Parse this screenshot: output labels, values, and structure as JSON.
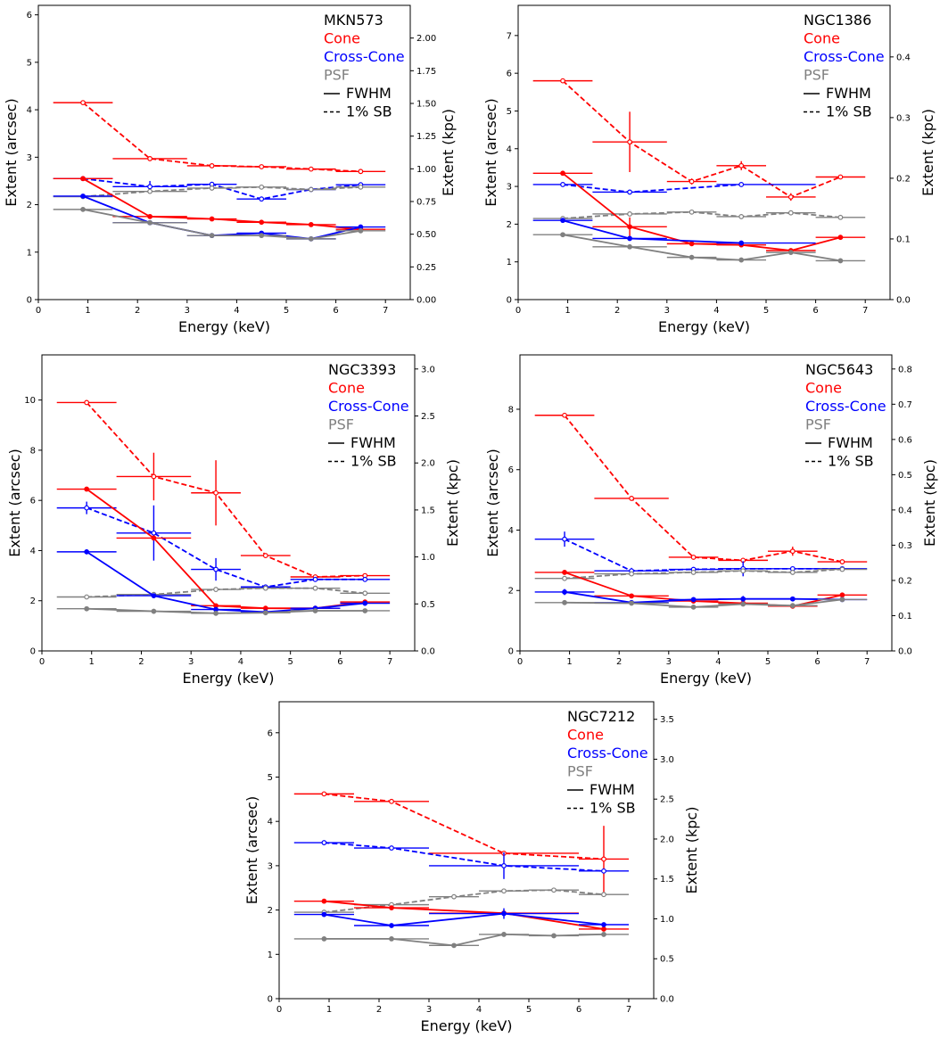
{
  "figure": {
    "xlabel": "Energy (keV)",
    "ylabel_left": "Extent (arcsec)",
    "ylabel_right": "Extent (kpc)",
    "colors": {
      "cone": "#ff0000",
      "cross_cone": "#0000ff",
      "psf": "#808080"
    },
    "legend": {
      "cone": "Cone",
      "cross_cone": "Cross-Cone",
      "psf": "PSF",
      "fwhm": "FWHM",
      "sb": "1% SB"
    }
  },
  "chart_data": [
    {
      "type": "line",
      "title": "MKN573",
      "xlim": [
        0,
        7.5
      ],
      "x_ticks": [
        0,
        1,
        2,
        3,
        4,
        5,
        6,
        7
      ],
      "ylim": [
        0,
        6.2
      ],
      "y_ticks": [
        0,
        1,
        2,
        3,
        4,
        5,
        6
      ],
      "y2lim": [
        0,
        2.25
      ],
      "y2_ticks": [
        "0.00",
        "0.25",
        "0.50",
        "0.75",
        "1.00",
        "1.25",
        "1.50",
        "1.75",
        "2.00"
      ],
      "x": [
        0.9,
        2.25,
        3.5,
        4.5,
        5.5,
        6.5
      ],
      "xerr_low": [
        0.6,
        0.75,
        0.5,
        0.5,
        0.5,
        0.5
      ],
      "xerr_high": [
        0.6,
        0.75,
        0.5,
        0.5,
        0.5,
        0.5
      ],
      "series": [
        {
          "name": "Cone 1% SB",
          "group": "cone",
          "style": "dashed",
          "values": [
            4.15,
            2.97,
            2.82,
            2.8,
            2.75,
            2.7
          ],
          "yerr": [
            0,
            0,
            0,
            0,
            0,
            0
          ]
        },
        {
          "name": "Cross-Cone 1% SB",
          "group": "cross_cone",
          "style": "dashed",
          "values": [
            2.55,
            2.38,
            2.43,
            2.12,
            2.32,
            2.42
          ],
          "yerr": [
            0,
            0.12,
            0,
            0.05,
            0,
            0
          ]
        },
        {
          "name": "PSF 1% SB",
          "group": "psf",
          "style": "dashed",
          "values": [
            2.17,
            2.28,
            2.35,
            2.37,
            2.32,
            2.37
          ],
          "yerr": [
            0,
            0,
            0,
            0,
            0,
            0
          ]
        },
        {
          "name": "Cone FWHM",
          "group": "cone",
          "style": "solid",
          "values": [
            2.55,
            1.75,
            1.7,
            1.63,
            1.58,
            1.48
          ],
          "yerr": [
            0,
            0,
            0,
            0,
            0,
            0
          ]
        },
        {
          "name": "Cross-Cone FWHM",
          "group": "cross_cone",
          "style": "solid",
          "values": [
            2.18,
            1.62,
            1.35,
            1.4,
            1.28,
            1.53
          ],
          "yerr": [
            0,
            0,
            0,
            0,
            0,
            0
          ]
        },
        {
          "name": "PSF FWHM",
          "group": "psf",
          "style": "solid",
          "values": [
            1.9,
            1.62,
            1.35,
            1.35,
            1.28,
            1.45
          ],
          "yerr": [
            0,
            0,
            0,
            0,
            0,
            0
          ]
        }
      ]
    },
    {
      "type": "line",
      "title": "NGC1386",
      "xlim": [
        0,
        7.5
      ],
      "x_ticks": [
        0,
        1,
        2,
        3,
        4,
        5,
        6,
        7
      ],
      "ylim": [
        0,
        7.8
      ],
      "y_ticks": [
        0,
        1,
        2,
        3,
        4,
        5,
        6,
        7
      ],
      "y2lim": [
        0,
        0.485
      ],
      "y2_ticks": [
        "0.0",
        "0.1",
        "0.2",
        "0.3",
        "0.4"
      ],
      "x": [
        0.9,
        2.25,
        3.5,
        4.5,
        5.5,
        6.5
      ],
      "xerr_low": [
        0.6,
        0.75,
        0.5,
        0.5,
        0.5,
        0.5
      ],
      "xerr_high": [
        0.6,
        0.75,
        0.5,
        0.5,
        0.5,
        0.5
      ],
      "series": [
        {
          "name": "Cone 1% SB",
          "group": "cone",
          "style": "dashed",
          "values": [
            5.8,
            4.18,
            3.13,
            3.55,
            2.72,
            3.25
          ],
          "yerr": [
            0,
            0.8,
            0.08,
            0.12,
            0.1,
            0
          ]
        },
        {
          "name": "Cross-Cone 1% SB",
          "group": "cross_cone",
          "style": "dashed",
          "values": [
            3.05,
            2.85,
            null,
            3.05,
            null,
            null
          ],
          "yerr": [
            0,
            0,
            0,
            0,
            0,
            0
          ],
          "xerr_low": [
            0.6,
            0.75,
            0,
            0.5,
            0,
            0
          ],
          "xerr_high": [
            0.6,
            0.75,
            0,
            1.5,
            0,
            0
          ]
        },
        {
          "name": "PSF 1% SB",
          "group": "psf",
          "style": "dashed",
          "values": [
            2.15,
            2.27,
            2.32,
            2.2,
            2.3,
            2.18
          ],
          "yerr": [
            0,
            0,
            0,
            0,
            0,
            0
          ]
        },
        {
          "name": "Cone FWHM",
          "group": "cone",
          "style": "solid",
          "values": [
            3.35,
            1.93,
            1.48,
            1.45,
            1.3,
            1.65
          ],
          "yerr": [
            0,
            0.25,
            0,
            0,
            0,
            0
          ]
        },
        {
          "name": "Cross-Cone FWHM",
          "group": "cross_cone",
          "style": "solid",
          "values": [
            2.1,
            1.62,
            null,
            1.5,
            null,
            null
          ],
          "yerr": [
            0,
            0,
            0,
            0,
            0,
            0
          ],
          "xerr_low": [
            0.6,
            0.75,
            0,
            0.5,
            0,
            0
          ],
          "xerr_high": [
            0.6,
            0.75,
            0,
            1.5,
            0,
            0
          ]
        },
        {
          "name": "PSF FWHM",
          "group": "psf",
          "style": "solid",
          "values": [
            1.72,
            1.4,
            1.12,
            1.05,
            1.25,
            1.03
          ],
          "yerr": [
            0,
            0,
            0,
            0,
            0,
            0
          ]
        }
      ]
    },
    {
      "type": "line",
      "title": "NGC3393",
      "xlim": [
        0,
        7.5
      ],
      "x_ticks": [
        0,
        1,
        2,
        3,
        4,
        5,
        6,
        7
      ],
      "ylim": [
        0,
        11.8
      ],
      "y_ticks": [
        0,
        2,
        4,
        6,
        8,
        10
      ],
      "y2lim": [
        0,
        3.15
      ],
      "y2_ticks": [
        "0.0",
        "0.5",
        "1.0",
        "1.5",
        "2.0",
        "2.5",
        "3.0"
      ],
      "x": [
        0.9,
        2.25,
        3.5,
        4.5,
        5.5,
        6.5
      ],
      "xerr_low": [
        0.6,
        0.75,
        0.5,
        0.5,
        0.5,
        0.5
      ],
      "xerr_high": [
        0.6,
        0.75,
        0.5,
        0.5,
        0.5,
        0.5
      ],
      "series": [
        {
          "name": "Cone 1% SB",
          "group": "cone",
          "style": "dashed",
          "values": [
            9.9,
            6.95,
            6.3,
            3.8,
            2.95,
            3.0
          ],
          "yerr": [
            0,
            0.95,
            1.3,
            0,
            0,
            0
          ]
        },
        {
          "name": "Cross-Cone 1% SB",
          "group": "cross_cone",
          "style": "dashed",
          "values": [
            5.7,
            4.7,
            3.25,
            2.55,
            2.85,
            2.85
          ],
          "yerr": [
            0.25,
            1.1,
            0.45,
            0,
            0,
            0
          ]
        },
        {
          "name": "PSF 1% SB",
          "group": "psf",
          "style": "dashed",
          "values": [
            2.15,
            2.25,
            2.45,
            2.5,
            2.5,
            2.3
          ],
          "yerr": [
            0,
            0,
            0,
            0,
            0,
            0
          ]
        },
        {
          "name": "Cone FWHM",
          "group": "cone",
          "style": "solid",
          "values": [
            6.45,
            4.5,
            1.8,
            1.7,
            1.7,
            1.95
          ],
          "yerr": [
            0,
            0,
            0,
            0,
            0,
            0
          ]
        },
        {
          "name": "Cross-Cone FWHM",
          "group": "cross_cone",
          "style": "solid",
          "values": [
            3.95,
            2.2,
            1.65,
            1.55,
            1.7,
            1.9
          ],
          "yerr": [
            0.1,
            0,
            0,
            0,
            0,
            0
          ]
        },
        {
          "name": "PSF FWHM",
          "group": "psf",
          "style": "solid",
          "values": [
            1.68,
            1.58,
            1.5,
            1.52,
            1.6,
            1.6
          ],
          "yerr": [
            0,
            0,
            0,
            0,
            0,
            0
          ]
        }
      ]
    },
    {
      "type": "line",
      "title": "NGC5643",
      "xlim": [
        0,
        7.5
      ],
      "x_ticks": [
        0,
        1,
        2,
        3,
        4,
        5,
        6,
        7
      ],
      "ylim": [
        0,
        9.8
      ],
      "y_ticks": [
        0,
        2,
        4,
        6,
        8
      ],
      "y2lim": [
        0,
        0.84
      ],
      "y2_ticks": [
        "0.0",
        "0.1",
        "0.2",
        "0.3",
        "0.4",
        "0.5",
        "0.6",
        "0.7",
        "0.8"
      ],
      "x": [
        0.9,
        2.25,
        3.5,
        4.5,
        5.5,
        6.5
      ],
      "xerr_low": [
        0.6,
        0.75,
        0.5,
        0.5,
        0.5,
        0.5
      ],
      "xerr_high": [
        0.6,
        0.75,
        0.5,
        0.5,
        0.5,
        0.5
      ],
      "series": [
        {
          "name": "Cone 1% SB",
          "group": "cone",
          "style": "dashed",
          "values": [
            7.8,
            5.05,
            3.1,
            3.0,
            3.3,
            2.95
          ],
          "yerr": [
            0,
            0,
            0,
            0,
            0.15,
            0
          ]
        },
        {
          "name": "Cross-Cone 1% SB",
          "group": "cross_cone",
          "style": "dashed",
          "values": [
            3.7,
            2.65,
            2.7,
            2.72,
            2.72,
            2.72
          ],
          "yerr": [
            0.25,
            0.1,
            0,
            0.25,
            0,
            0
          ]
        },
        {
          "name": "PSF 1% SB",
          "group": "psf",
          "style": "dashed",
          "values": [
            2.4,
            2.55,
            2.6,
            2.65,
            2.6,
            2.7
          ],
          "yerr": [
            0,
            0,
            0,
            0,
            0,
            0
          ]
        },
        {
          "name": "Cone FWHM",
          "group": "cone",
          "style": "solid",
          "values": [
            2.6,
            1.82,
            1.65,
            1.58,
            1.48,
            1.85
          ],
          "yerr": [
            0,
            0,
            0,
            0,
            0,
            0
          ]
        },
        {
          "name": "Cross-Cone FWHM",
          "group": "cross_cone",
          "style": "solid",
          "values": [
            1.95,
            1.6,
            1.7,
            1.72,
            1.72,
            1.7
          ],
          "yerr": [
            0.1,
            0,
            0,
            0.1,
            0,
            0
          ]
        },
        {
          "name": "PSF FWHM",
          "group": "psf",
          "style": "solid",
          "values": [
            1.6,
            1.58,
            1.45,
            1.55,
            1.5,
            1.7
          ],
          "yerr": [
            0,
            0,
            0,
            0,
            0,
            0
          ]
        }
      ]
    },
    {
      "type": "line",
      "title": "NGC7212",
      "xlim": [
        0,
        7.5
      ],
      "x_ticks": [
        0,
        1,
        2,
        3,
        4,
        5,
        6,
        7
      ],
      "ylim": [
        0,
        6.7
      ],
      "y_ticks": [
        0,
        1,
        2,
        3,
        4,
        5,
        6
      ],
      "y2lim": [
        0,
        3.72
      ],
      "y2_ticks": [
        "0.0",
        "0.5",
        "1.0",
        "1.5",
        "2.0",
        "2.5",
        "3.0",
        "3.5"
      ],
      "x": [
        0.9,
        2.25,
        3.5,
        4.5,
        5.5,
        6.5
      ],
      "xerr_low": [
        0.6,
        0.75,
        0.5,
        0.5,
        0.5,
        0.5
      ],
      "xerr_high": [
        0.6,
        0.75,
        0.5,
        0.5,
        0.5,
        0.5
      ],
      "series": [
        {
          "name": "Cone 1% SB",
          "group": "cone",
          "style": "dashed",
          "values": [
            4.62,
            4.45,
            null,
            3.28,
            null,
            3.15
          ],
          "yerr": [
            0,
            0,
            0,
            0,
            0,
            0.75
          ],
          "xerr_low": [
            0.6,
            0.75,
            0,
            1.5,
            0,
            0.5
          ],
          "xerr_high": [
            0.6,
            0.75,
            0,
            1.5,
            0,
            0.5
          ]
        },
        {
          "name": "Cross-Cone 1% SB",
          "group": "cross_cone",
          "style": "dashed",
          "values": [
            3.52,
            3.4,
            null,
            3.0,
            null,
            2.88
          ],
          "yerr": [
            0,
            0,
            0,
            0.3,
            0,
            0
          ],
          "xerr_low": [
            0.6,
            0.75,
            0,
            1.5,
            0,
            0.5
          ],
          "xerr_high": [
            0.6,
            0.75,
            0,
            1.5,
            0,
            0.5
          ]
        },
        {
          "name": "PSF 1% SB",
          "group": "psf",
          "style": "dashed",
          "values": [
            1.95,
            2.12,
            2.3,
            2.43,
            2.45,
            2.35
          ],
          "yerr": [
            0,
            0,
            0,
            0,
            0,
            0
          ]
        },
        {
          "name": "Cone FWHM",
          "group": "cone",
          "style": "solid",
          "values": [
            2.2,
            2.05,
            null,
            1.93,
            null,
            1.57
          ],
          "yerr": [
            0,
            0,
            0,
            0,
            0,
            0
          ],
          "xerr_low": [
            0.6,
            0.75,
            0,
            1.5,
            0,
            0.5
          ],
          "xerr_high": [
            0.6,
            0.75,
            0,
            1.5,
            0,
            0.5
          ]
        },
        {
          "name": "Cross-Cone FWHM",
          "group": "cross_cone",
          "style": "solid",
          "values": [
            1.9,
            1.65,
            null,
            1.92,
            null,
            1.67
          ],
          "yerr": [
            0,
            0,
            0,
            0.12,
            0,
            0
          ],
          "xerr_low": [
            0.6,
            0.75,
            0,
            1.5,
            0,
            0.5
          ],
          "xerr_high": [
            0.6,
            0.75,
            0,
            1.5,
            0,
            0.5
          ]
        },
        {
          "name": "PSF FWHM",
          "group": "psf",
          "style": "solid",
          "values": [
            1.35,
            1.35,
            1.2,
            1.45,
            1.42,
            1.45
          ],
          "yerr": [
            0,
            0,
            0,
            0,
            0,
            0
          ]
        }
      ]
    }
  ]
}
